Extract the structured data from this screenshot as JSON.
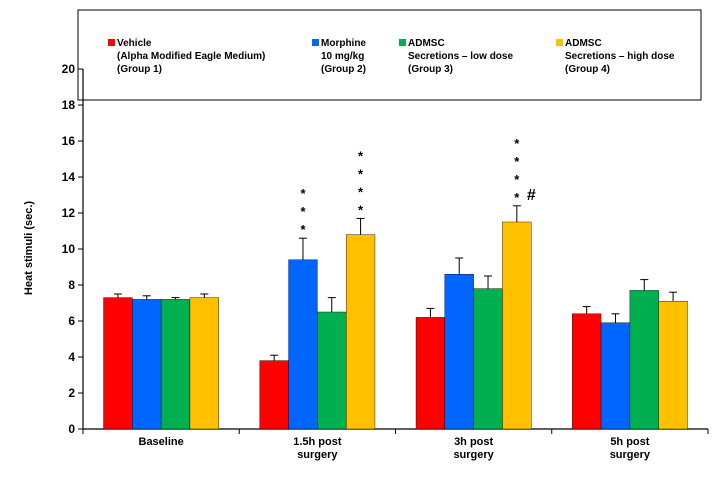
{
  "chart_data": {
    "type": "bar",
    "categories": [
      "Baseline",
      "1.5h post surgery",
      "3h post surgery",
      "5h post surgery"
    ],
    "category_lines": [
      [
        "Baseline"
      ],
      [
        "1.5h post",
        "surgery"
      ],
      [
        "3h post",
        "surgery"
      ],
      [
        "5h post",
        "surgery"
      ]
    ],
    "ylabel": "Heat stimuli (sec.)",
    "xlabel": "",
    "ylim": [
      0,
      20
    ],
    "yticks": [
      0,
      2,
      4,
      6,
      8,
      10,
      12,
      14,
      16,
      18,
      20
    ],
    "grid": false,
    "legend_position": "top",
    "series": [
      {
        "name": "Vehicle (Alpha Modified Eagle Medium) (Group 1)",
        "legend_lines": [
          "Vehicle",
          "(Alpha Modified Eagle Medium)",
          "(Group 1)"
        ],
        "color": "#ff0000",
        "values": [
          7.3,
          3.8,
          6.2,
          6.4
        ],
        "errors": [
          0.2,
          0.3,
          0.5,
          0.4
        ]
      },
      {
        "name": "Morphine 10 mg/kg (Group 2)",
        "legend_lines": [
          "Morphine",
          "10 mg/kg",
          "(Group 2)"
        ],
        "color": "#0066ff",
        "values": [
          7.2,
          9.4,
          8.6,
          5.9
        ],
        "errors": [
          0.2,
          1.2,
          0.9,
          0.5
        ]
      },
      {
        "name": "ADMSC Secretions – low dose (Group 3)",
        "legend_lines": [
          "ADMSC",
          "Secretions – low dose",
          "(Group 3)"
        ],
        "color": "#00b050",
        "values": [
          7.2,
          6.5,
          7.8,
          7.7
        ],
        "errors": [
          0.1,
          0.8,
          0.7,
          0.6
        ]
      },
      {
        "name": "ADMSC Secretions – high dose (Group 4)",
        "legend_lines": [
          "ADMSC",
          "Secretions – high dose",
          "(Group 4)"
        ],
        "color": "#ffc000",
        "values": [
          7.3,
          10.8,
          11.5,
          7.1
        ],
        "errors": [
          0.2,
          0.9,
          0.9,
          0.5
        ]
      }
    ],
    "annotations": [
      {
        "category": 1,
        "series": 1,
        "marks": [
          "*",
          "*",
          "*"
        ]
      },
      {
        "category": 1,
        "series": 3,
        "marks": [
          "*",
          "*",
          "*",
          "*"
        ]
      },
      {
        "category": 2,
        "series": 3,
        "marks": [
          "*",
          "*",
          "*",
          "*"
        ],
        "extra": "#"
      }
    ]
  }
}
